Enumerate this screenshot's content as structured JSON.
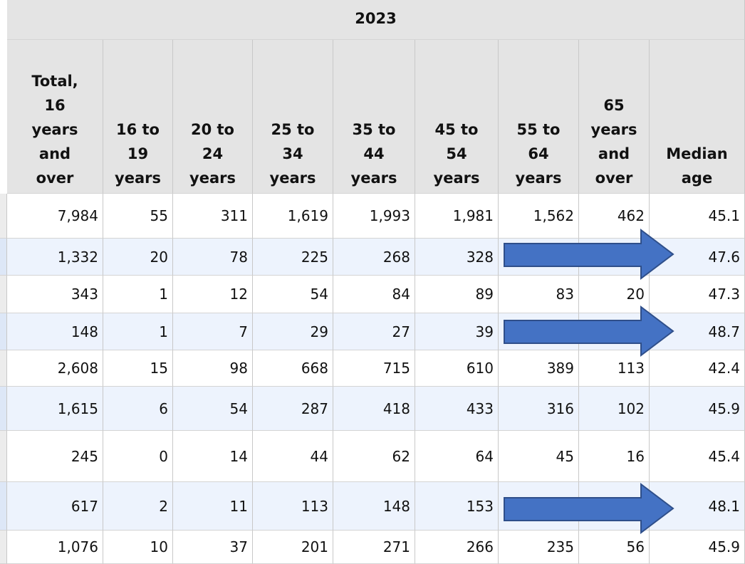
{
  "table": {
    "year": "2023",
    "columns": [
      "Total,\n16\nyears\nand\nover",
      "16 to\n19\nyears",
      "20 to\n24\nyears",
      "25 to\n34\nyears",
      "35 to\n44\nyears",
      "45 to\n54\nyears",
      "55 to\n64\nyears",
      "65\nyears\nand\nover",
      "Median\nage"
    ],
    "rows": [
      [
        "7,984",
        "55",
        "311",
        "1,619",
        "1,993",
        "1,981",
        "1,562",
        "462",
        "45.1"
      ],
      [
        "1,332",
        "20",
        "78",
        "225",
        "268",
        "328",
        null,
        null,
        "47.6"
      ],
      [
        "343",
        "1",
        "12",
        "54",
        "84",
        "89",
        "83",
        "20",
        "47.3"
      ],
      [
        "148",
        "1",
        "7",
        "29",
        "27",
        "39",
        null,
        null,
        "48.7"
      ],
      [
        "2,608",
        "15",
        "98",
        "668",
        "715",
        "610",
        "389",
        "113",
        "42.4"
      ],
      [
        "1,615",
        "6",
        "54",
        "287",
        "418",
        "433",
        "316",
        "102",
        "45.9"
      ],
      [
        "245",
        "0",
        "14",
        "44",
        "62",
        "64",
        "45",
        "16",
        "45.4"
      ],
      [
        "617",
        "2",
        "11",
        "113",
        "148",
        "153",
        null,
        null,
        "48.1"
      ],
      [
        "1,076",
        "10",
        "37",
        "201",
        "271",
        "266",
        "235",
        "56",
        "45.9"
      ]
    ]
  }
}
